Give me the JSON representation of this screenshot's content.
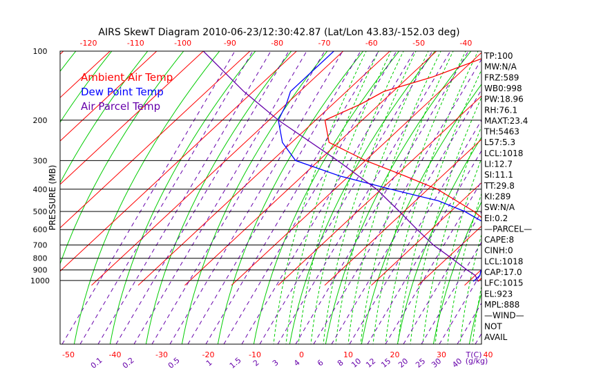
{
  "chart_data": {
    "type": "line",
    "title": "AIRS SkewT Diagram 2010-06-23/12:30:42.87 (Lat/Lon 43.83/-152.03 deg)",
    "ylabel": "PRESSURE (MB)",
    "xlabel": "T(C)",
    "mixing_ratio_unit": "(g/kg)",
    "pressure_ticks": [
      100,
      200,
      300,
      400,
      500,
      600,
      700,
      800,
      900,
      1000
    ],
    "pressure_range": [
      100,
      1050
    ],
    "top_temp_ticks": [
      -120,
      -110,
      -100,
      -90,
      -80,
      -70,
      -60,
      -50,
      -40
    ],
    "bottom_temp_ticks": [
      -50,
      -40,
      -30,
      -20,
      -10,
      0,
      10,
      20,
      30,
      40
    ],
    "mixing_ratio_ticks": [
      "0.1",
      "0.2",
      "0.5",
      "1",
      "1.5",
      "2",
      "3",
      "4",
      "6",
      "8",
      "10",
      "12",
      "15",
      "20",
      "25",
      "30",
      "40"
    ],
    "legend": [
      {
        "name": "Ambient Air Temp",
        "color": "#ff0000"
      },
      {
        "name": "Dew Point Temp",
        "color": "#0000ff"
      },
      {
        "name": "Air Parcel Temp",
        "color": "#6600aa"
      }
    ],
    "series": [
      {
        "name": "Ambient Air Temp",
        "color": "#ff0000",
        "points": [
          [
            1010,
            12
          ],
          [
            960,
            12
          ],
          [
            900,
            14
          ],
          [
            800,
            18
          ],
          [
            700,
            12
          ],
          [
            600,
            4
          ],
          [
            500,
            -5
          ],
          [
            400,
            -18
          ],
          [
            350,
            -28
          ],
          [
            300,
            -40
          ],
          [
            250,
            -52
          ],
          [
            200,
            -58
          ],
          [
            170,
            -54
          ],
          [
            150,
            -52
          ],
          [
            130,
            -45
          ],
          [
            100,
            -36
          ]
        ]
      },
      {
        "name": "Dew Point Temp",
        "color": "#0000ff",
        "points": [
          [
            1010,
            11
          ],
          [
            950,
            11
          ],
          [
            900,
            10
          ],
          [
            800,
            10
          ],
          [
            700,
            7
          ],
          [
            600,
            4
          ],
          [
            500,
            -7
          ],
          [
            450,
            -15
          ],
          [
            400,
            -28
          ],
          [
            350,
            -42
          ],
          [
            300,
            -55
          ],
          [
            250,
            -62
          ],
          [
            200,
            -68
          ],
          [
            170,
            -70
          ],
          [
            150,
            -72
          ],
          [
            100,
            -72
          ]
        ]
      },
      {
        "name": "Air Parcel Temp",
        "color": "#6600aa",
        "points": [
          [
            1010,
            12
          ],
          [
            950,
            10
          ],
          [
            900,
            7
          ],
          [
            800,
            1
          ],
          [
            700,
            -6
          ],
          [
            600,
            -13
          ],
          [
            500,
            -21
          ],
          [
            400,
            -31
          ],
          [
            300,
            -46
          ],
          [
            200,
            -68
          ],
          [
            150,
            -82
          ],
          [
            100,
            -100
          ]
        ]
      }
    ],
    "stats": [
      "TP:100",
      "MW:N/A",
      "FRZ:589",
      "WB0:998",
      "PW:18.96",
      "RH:76.1",
      "MAXT:23.4",
      "TH:5463",
      "L57:5.3",
      "LCL:1018",
      "LI:12.7",
      "SI:11.1",
      "TT:29.8",
      "KI:289",
      "SW:N/A",
      "EI:0.2",
      "—PARCEL—",
      "CAPE:8",
      "CINH:0",
      "LCL:1018",
      "CAP:17.0",
      "LFC:1015",
      "EL:923",
      "MPL:888",
      "—WIND—",
      "NOT",
      "AVAIL"
    ]
  }
}
